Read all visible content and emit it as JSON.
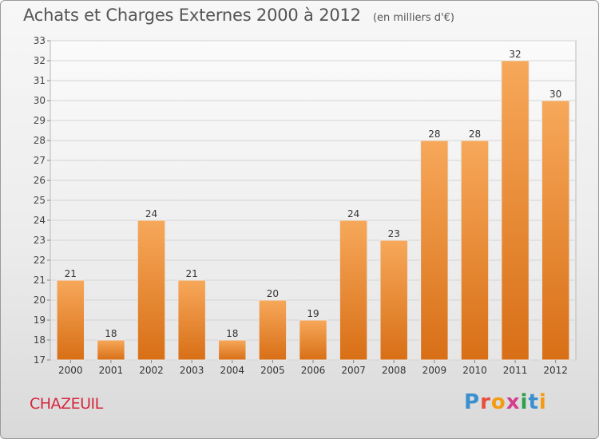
{
  "header": {
    "title": "Achats et Charges Externes 2000 à 2012",
    "unit": "(en milliers d'€)"
  },
  "footer": {
    "city": "CHAZEUIL",
    "logo": "Proxiti",
    "logo_colors": [
      "#3a8fd0",
      "#e94e3c",
      "#f39c12",
      "#d43f8d",
      "#2e9e4f",
      "#3a8fd0",
      "#f39c12"
    ]
  },
  "chart_data": {
    "type": "bar",
    "categories": [
      "2000",
      "2001",
      "2002",
      "2003",
      "2004",
      "2005",
      "2006",
      "2007",
      "2008",
      "2009",
      "2010",
      "2011",
      "2012"
    ],
    "values": [
      21,
      18,
      24,
      21,
      18,
      20,
      19,
      24,
      23,
      28,
      28,
      32,
      30
    ],
    "ylim": [
      17,
      33
    ],
    "yticks": [
      17,
      18,
      19,
      20,
      21,
      22,
      23,
      24,
      25,
      26,
      27,
      28,
      29,
      30,
      31,
      32,
      33
    ],
    "grid": true,
    "data_labels": true,
    "bar_color_top": "#f7a85a",
    "bar_color_bottom": "#d86f16"
  }
}
